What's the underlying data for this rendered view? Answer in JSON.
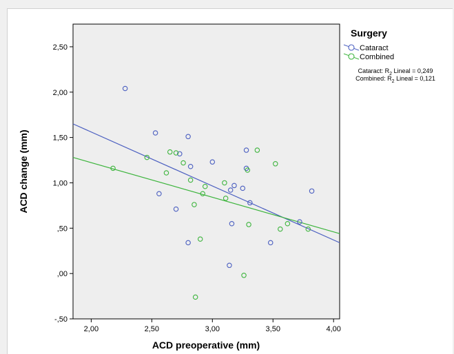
{
  "chart_data": {
    "type": "scatter",
    "xlabel": "ACD preoperative (mm)",
    "ylabel": "ACD change (mm)",
    "xlim": [
      1.85,
      4.05
    ],
    "ylim": [
      -0.5,
      2.75
    ],
    "x_ticks": [
      "2,00",
      "2,50",
      "3,00",
      "3,50",
      "4,00"
    ],
    "x_tick_values": [
      2.0,
      2.5,
      3.0,
      3.5,
      4.0
    ],
    "y_ticks": [
      "-,50",
      ",00",
      ",50",
      "1,00",
      "1,50",
      "2,00",
      "2,50"
    ],
    "y_tick_values": [
      -0.5,
      0.0,
      0.5,
      1.0,
      1.5,
      2.0,
      2.5
    ],
    "legend_title": "Surgery",
    "legend_position": "top-right, outside plot",
    "plot_background": "#eeeeee",
    "grid": false,
    "series": [
      {
        "name": "Cataract",
        "color": "#4a5ec0",
        "marker": "open-circle",
        "fit_label_prefix": "Cataract: R",
        "fit_label_sub": "2",
        "fit_label_suffix": " Lineal = 0,249",
        "fit_line": [
          [
            1.85,
            1.65
          ],
          [
            4.05,
            0.34
          ]
        ],
        "points": [
          [
            2.28,
            2.04
          ],
          [
            2.53,
            1.55
          ],
          [
            2.56,
            0.88
          ],
          [
            2.7,
            0.71
          ],
          [
            2.73,
            1.32
          ],
          [
            2.8,
            1.51
          ],
          [
            2.82,
            1.18
          ],
          [
            2.8,
            0.34
          ],
          [
            3.0,
            1.23
          ],
          [
            3.14,
            0.09
          ],
          [
            3.15,
            0.92
          ],
          [
            3.16,
            0.55
          ],
          [
            3.18,
            0.97
          ],
          [
            3.25,
            0.94
          ],
          [
            3.28,
            1.36
          ],
          [
            3.28,
            1.16
          ],
          [
            3.31,
            0.78
          ],
          [
            3.48,
            0.34
          ],
          [
            3.72,
            0.57
          ],
          [
            3.82,
            0.91
          ]
        ]
      },
      {
        "name": "Combined",
        "color": "#3cb43c",
        "marker": "open-circle",
        "fit_label_prefix": "Combined: R",
        "fit_label_sub": "2",
        "fit_label_suffix": " Lineal = 0,121",
        "fit_line": [
          [
            1.85,
            1.28
          ],
          [
            4.05,
            0.44
          ]
        ],
        "points": [
          [
            2.18,
            1.16
          ],
          [
            2.46,
            1.28
          ],
          [
            2.62,
            1.11
          ],
          [
            2.65,
            1.34
          ],
          [
            2.7,
            1.33
          ],
          [
            2.76,
            1.22
          ],
          [
            2.82,
            1.03
          ],
          [
            2.85,
            0.76
          ],
          [
            2.86,
            -0.26
          ],
          [
            2.9,
            0.38
          ],
          [
            2.92,
            0.88
          ],
          [
            2.94,
            0.96
          ],
          [
            3.1,
            1.0
          ],
          [
            3.11,
            0.83
          ],
          [
            3.26,
            -0.02
          ],
          [
            3.29,
            1.14
          ],
          [
            3.3,
            0.54
          ],
          [
            3.37,
            1.36
          ],
          [
            3.52,
            1.21
          ],
          [
            3.56,
            0.49
          ],
          [
            3.62,
            0.55
          ],
          [
            3.79,
            0.49
          ]
        ]
      }
    ]
  }
}
